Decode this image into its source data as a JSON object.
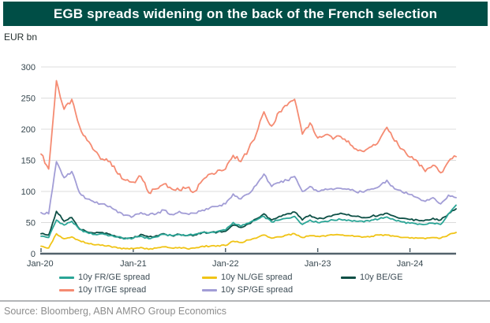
{
  "header": {
    "title": "EGB spreads widening on the back of the French selection"
  },
  "chart_data": {
    "type": "line",
    "title": "EGB spreads widening on the back of the French selection",
    "xlabel": "",
    "ylabel": "EUR bn",
    "ylim": [
      0,
      300
    ],
    "yticks": [
      0,
      50,
      100,
      150,
      200,
      250,
      300
    ],
    "xticks": [
      "Jan-20",
      "Jan-21",
      "Jan-22",
      "Jan-23",
      "Jan-24"
    ],
    "xtick_month_indexes": [
      0,
      12,
      24,
      36,
      48
    ],
    "x_range": "monthly, Jan-2020 to Jul-2024",
    "grid": "horizontal",
    "legend_position": "bottom",
    "series": [
      {
        "name": "10y FR/GE spread",
        "color": "#2AA596",
        "values": [
          28,
          26,
          54,
          46,
          52,
          39,
          34,
          31,
          32,
          29,
          27,
          24,
          25,
          28,
          24,
          27,
          31,
          29,
          31,
          29,
          31,
          34,
          34,
          36,
          38,
          50,
          44,
          49,
          54,
          60,
          51,
          54,
          57,
          60,
          47,
          54,
          50,
          52,
          54,
          55,
          54,
          52,
          51,
          54,
          56,
          59,
          54,
          51,
          49,
          47,
          47,
          49,
          47,
          64,
          78
        ]
      },
      {
        "name": "10y IT/GE spread",
        "color": "#F58B72",
        "values": [
          160,
          136,
          278,
          232,
          248,
          205,
          182,
          165,
          152,
          148,
          128,
          118,
          115,
          124,
          98,
          104,
          112,
          104,
          102,
          106,
          100,
          118,
          128,
          134,
          136,
          158,
          148,
          168,
          192,
          228,
          205,
          228,
          238,
          248,
          192,
          210,
          186,
          191,
          184,
          188,
          181,
          168,
          164,
          172,
          182,
          203,
          181,
          168,
          155,
          148,
          132,
          142,
          130,
          148,
          156
        ]
      },
      {
        "name": "10y NL/GE spread",
        "color": "#F0C417",
        "values": [
          12,
          9,
          32,
          24,
          27,
          21,
          17,
          14,
          14,
          12,
          9,
          8,
          8,
          10,
          7,
          9,
          11,
          9,
          10,
          8,
          9,
          12,
          12,
          13,
          13,
          20,
          18,
          22,
          25,
          30,
          25,
          27,
          30,
          32,
          26,
          29,
          28,
          28,
          30,
          30,
          29,
          28,
          27,
          28,
          30,
          30,
          28,
          26,
          25,
          25,
          24,
          26,
          25,
          30,
          34
        ]
      },
      {
        "name": "10y SP/GE spread",
        "color": "#A29DD6",
        "values": [
          66,
          64,
          148,
          122,
          132,
          98,
          88,
          82,
          80,
          76,
          66,
          62,
          60,
          66,
          62,
          64,
          70,
          63,
          68,
          64,
          65,
          70,
          74,
          76,
          80,
          96,
          88,
          96,
          110,
          128,
          108,
          114,
          118,
          124,
          100,
          108,
          100,
          104,
          103,
          105,
          104,
          99,
          99,
          104,
          108,
          118,
          104,
          99,
          95,
          90,
          84,
          90,
          80,
          94,
          90
        ]
      },
      {
        "name": "10y BE/GE",
        "color": "#0D4F45",
        "values": [
          32,
          30,
          68,
          52,
          58,
          40,
          35,
          33,
          34,
          31,
          27,
          25,
          25,
          31,
          27,
          29,
          32,
          29,
          31,
          29,
          30,
          34,
          34,
          35,
          36,
          46,
          42,
          48,
          56,
          64,
          54,
          60,
          64,
          67,
          54,
          62,
          56,
          58,
          62,
          65,
          63,
          60,
          58,
          60,
          62,
          65,
          60,
          57,
          55,
          54,
          54,
          57,
          54,
          64,
          72
        ]
      }
    ]
  },
  "legend": {
    "items": [
      {
        "label": "10y FR/GE spread",
        "color": "#2AA596",
        "key": "fr-ge"
      },
      {
        "label": "10y NL/GE spread",
        "color": "#F0C417",
        "key": "nl-ge"
      },
      {
        "label": "10y BE/GE",
        "color": "#0D4F45",
        "key": "be-ge"
      },
      {
        "label": "10y IT/GE spread",
        "color": "#F58B72",
        "key": "it-ge"
      },
      {
        "label": "10y SP/GE spread",
        "color": "#A29DD6",
        "key": "sp-ge"
      }
    ]
  },
  "footer": {
    "source": "Source: Bloomberg, ABN AMRO Group Economics"
  },
  "colors": {
    "title_bar_bg": "#004E46",
    "title_text": "#FFFFFF",
    "gridline": "#DCDCDC",
    "axis_line": "#53626C",
    "tick_text": "#37474F",
    "source_text": "#8D8D8D",
    "divider": "#B3B5B7"
  }
}
